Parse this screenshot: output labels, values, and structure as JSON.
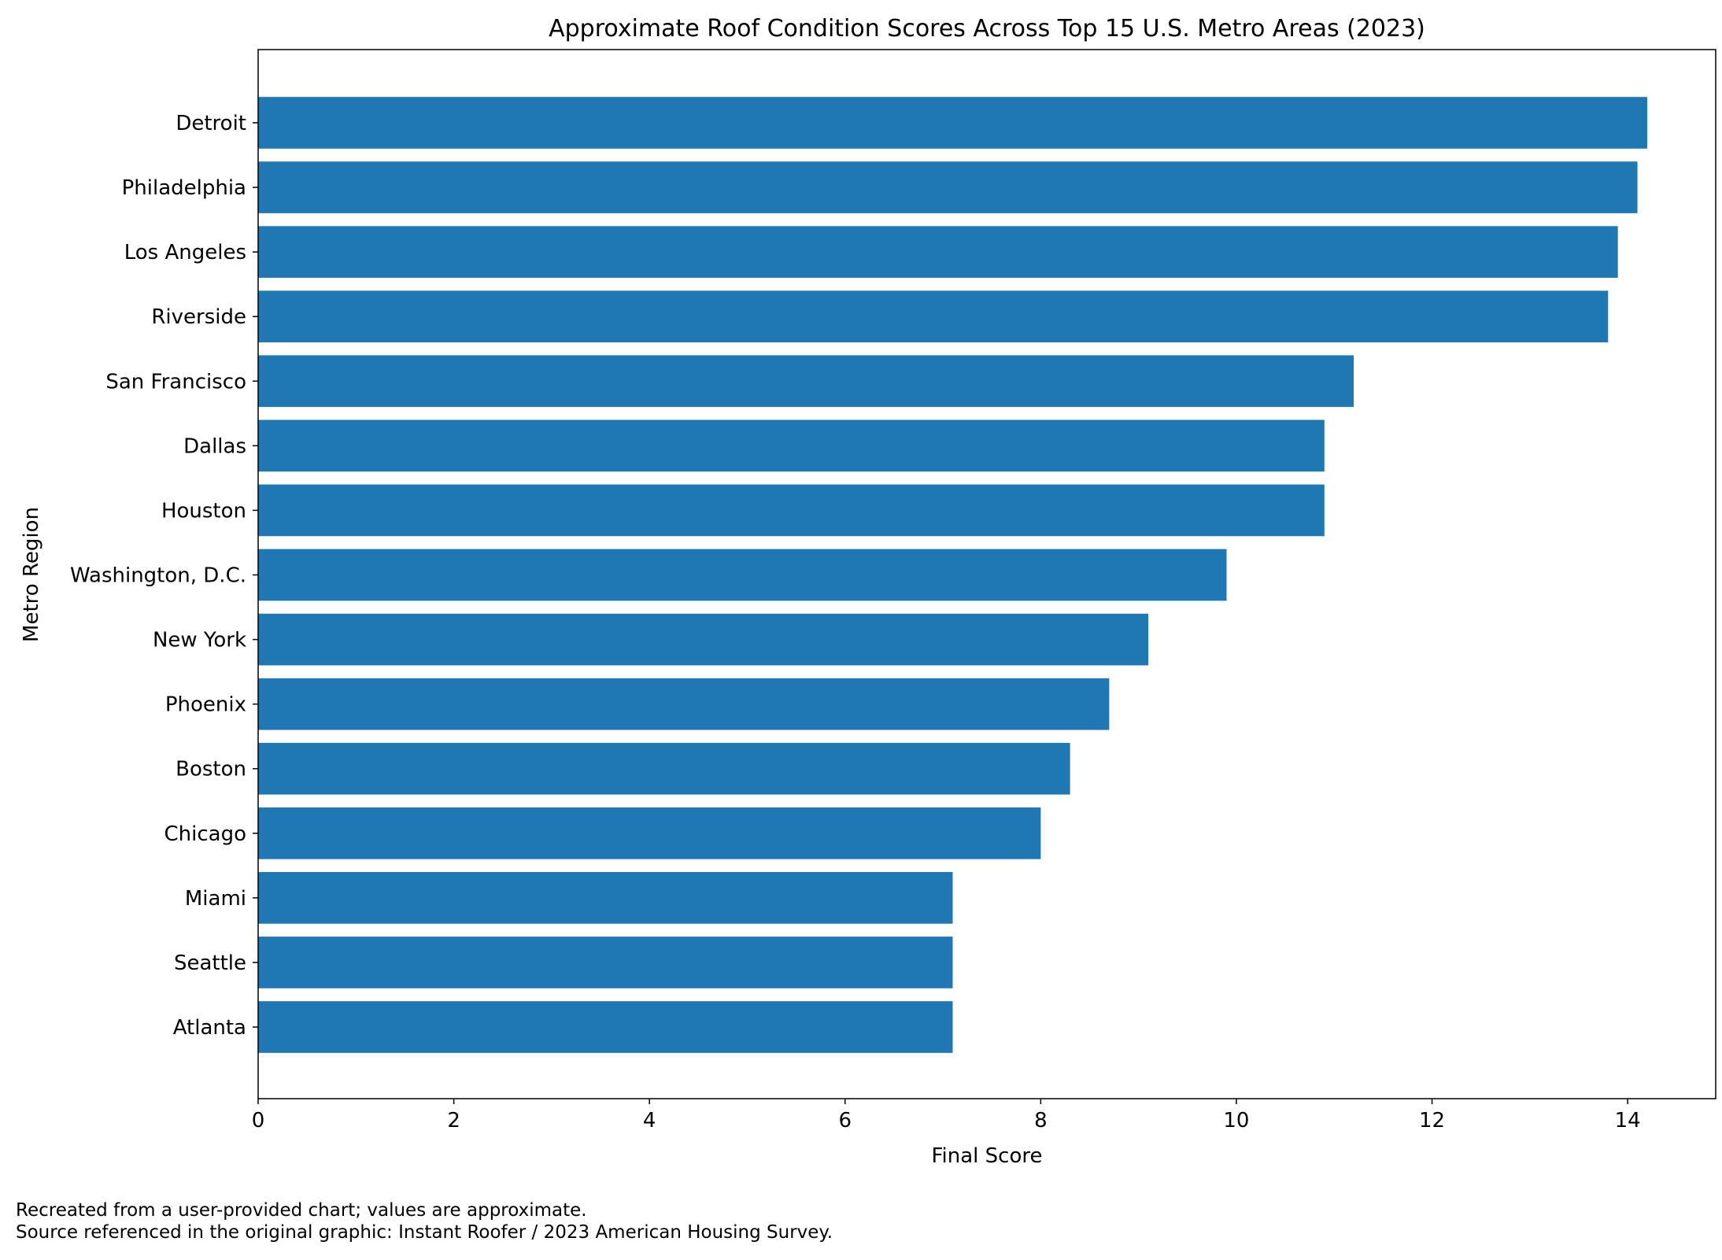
{
  "chart_data": {
    "type": "bar",
    "orientation": "horizontal",
    "title": "Approximate Roof Condition Scores Across Top 15 U.S. Metro Areas (2023)",
    "xlabel": "Final Score",
    "ylabel": "Metro Region",
    "xlim": [
      0,
      14.9
    ],
    "xticks": [
      "0",
      "2",
      "4",
      "6",
      "8",
      "10",
      "12",
      "14"
    ],
    "grid": false,
    "legend": "none",
    "bar_color": "#1f77b4",
    "categories": [
      "Detroit",
      "Philadelphia",
      "Los Angeles",
      "Riverside",
      "San Francisco",
      "Dallas",
      "Houston",
      "Washington, D.C.",
      "New York",
      "Phoenix",
      "Boston",
      "Chicago",
      "Miami",
      "Seattle",
      "Atlanta"
    ],
    "values": [
      14.2,
      14.1,
      13.9,
      13.8,
      11.2,
      10.9,
      10.9,
      9.9,
      9.1,
      8.7,
      8.3,
      8.0,
      7.1,
      7.1,
      7.1
    ]
  },
  "footnotes": [
    "Recreated from a user-provided chart; values are approximate.",
    "Source referenced in the original graphic: Instant Roofer / 2023 American Housing Survey."
  ]
}
